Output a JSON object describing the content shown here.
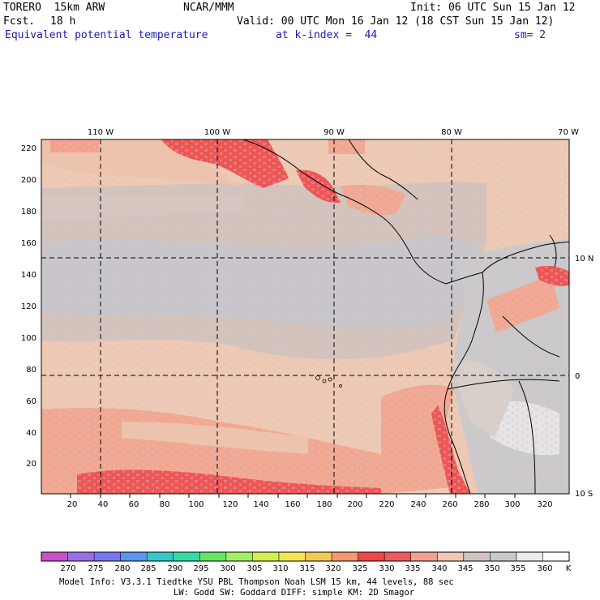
{
  "header": {
    "model": "TORERO  15km ARW",
    "center": "NCAR/MMM",
    "init": "Init: 06 UTC Sun 15 Jan 12",
    "fcst_label": "Fcst.",
    "fcst_value": "18 h",
    "valid": "Valid: 00 UTC Mon 16 Jan 12 (18 CST Sun 15 Jan 12)",
    "field": "Equivalent potential temperature",
    "level": "at k-index =  44",
    "smooth": "sm= 2"
  },
  "map": {
    "x_ticks": [
      "20",
      "40",
      "60",
      "80",
      "100",
      "120",
      "140",
      "160",
      "180",
      "200",
      "220",
      "240",
      "260",
      "280",
      "300",
      "320"
    ],
    "y_ticks": [
      "20",
      "40",
      "60",
      "80",
      "100",
      "120",
      "140",
      "160",
      "180",
      "200",
      "220"
    ],
    "lon_labels": [
      "110 W",
      "100 W",
      "90 W",
      "80 W",
      "70 W"
    ],
    "lat_labels": [
      "10 N",
      "0",
      "10 S"
    ]
  },
  "colorbar": {
    "values": [
      "270",
      "275",
      "280",
      "285",
      "290",
      "295",
      "300",
      "305",
      "310",
      "315",
      "320",
      "325",
      "330",
      "335",
      "340",
      "345",
      "350",
      "355",
      "360"
    ],
    "unit": "K",
    "colors": [
      "#c850c8",
      "#9b6ee6",
      "#7878f0",
      "#5a96f0",
      "#32c8c8",
      "#32dca0",
      "#64e664",
      "#a0f064",
      "#d2f050",
      "#f5e650",
      "#f5c850",
      "#f5966e",
      "#f04646",
      "#f05a5a",
      "#f5a08c",
      "#f0c8b4",
      "#d2c3c3",
      "#c8c8cd",
      "#ebebeb",
      "#ffffff"
    ]
  },
  "footer": {
    "line1": "Model Info: V3.3.1    Tiedtke YSU PBL  Thompson     Noah LSM  15 km,   44 levels,   88 sec",
    "line2": "LW: Godd SW: Goddard DIFF: simple KM: 2D Smagor"
  }
}
